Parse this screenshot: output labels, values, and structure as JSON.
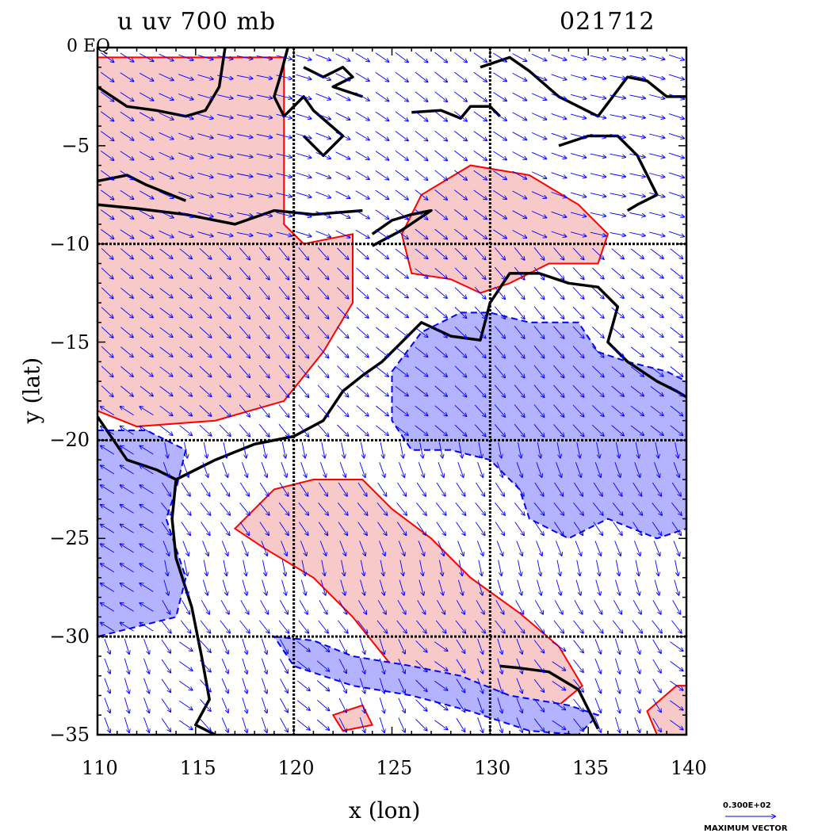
{
  "title_left": "u  uv  700  mb",
  "title_right": "021712",
  "xlabel": "x (lon)",
  "ylabel": "y (lat)",
  "x_ticks": [
    "110",
    "115",
    "120",
    "125",
    "130",
    "135",
    "140"
  ],
  "y_ticks": [
    "0 EQ",
    "−5",
    "−10",
    "−15",
    "−20",
    "−25",
    "−30",
    "−35"
  ],
  "legend": {
    "value": "0.300E+02",
    "label": "MAXIMUM VECTOR"
  },
  "colors": {
    "positive_fill": "#f7c9c9",
    "positive_line": "#ff0000",
    "negative_fill": "#b3b3ff",
    "negative_line": "#0000ff",
    "coast": "#000000",
    "vector": "#0000ff"
  },
  "chart_data": {
    "type": "map",
    "xlim": [
      110,
      140
    ],
    "ylim": [
      -35,
      0
    ],
    "grid_lon": [
      120,
      130
    ],
    "grid_lat": [
      -10,
      -20,
      -30
    ],
    "positive_regions": [
      [
        [
          110,
          -0.5
        ],
        [
          119.5,
          -0.5
        ],
        [
          119.5,
          -9
        ],
        [
          120.5,
          -10
        ],
        [
          123,
          -9.5
        ],
        [
          123,
          -13
        ],
        [
          121.5,
          -15.5
        ],
        [
          119.5,
          -18
        ],
        [
          116,
          -19
        ],
        [
          112,
          -19.3
        ],
        [
          110,
          -18.5
        ]
      ],
      [
        [
          126.5,
          -7.5
        ],
        [
          129,
          -6
        ],
        [
          132,
          -6.5
        ],
        [
          134.5,
          -8
        ],
        [
          136,
          -9.5
        ],
        [
          135.5,
          -11
        ],
        [
          133,
          -11
        ],
        [
          131,
          -12
        ],
        [
          129.5,
          -12.5
        ],
        [
          128,
          -11.8
        ],
        [
          126,
          -11.5
        ],
        [
          125.5,
          -9.5
        ]
      ],
      [
        [
          117,
          -24.5
        ],
        [
          119,
          -22.5
        ],
        [
          121,
          -22
        ],
        [
          123.5,
          -22
        ],
        [
          125,
          -23.5
        ],
        [
          127,
          -25
        ],
        [
          129,
          -27
        ],
        [
          131.5,
          -28.8
        ],
        [
          133.5,
          -30.5
        ],
        [
          134.7,
          -32.5
        ],
        [
          133.5,
          -33.5
        ],
        [
          131,
          -34
        ],
        [
          128,
          -33
        ],
        [
          125,
          -31.5
        ],
        [
          123,
          -29
        ],
        [
          121,
          -27
        ],
        [
          118.5,
          -25.5
        ]
      ],
      [
        [
          122,
          -34
        ],
        [
          123.5,
          -33.5
        ],
        [
          124,
          -34.5
        ],
        [
          122.5,
          -34.8
        ]
      ],
      [
        [
          138,
          -33.8
        ],
        [
          139.5,
          -32.5
        ],
        [
          140,
          -32.5
        ],
        [
          140,
          -35
        ],
        [
          138.5,
          -35
        ]
      ]
    ],
    "negative_regions": [
      [
        [
          125,
          -16.5
        ],
        [
          126.5,
          -14.5
        ],
        [
          128.5,
          -13.5
        ],
        [
          130,
          -13.5
        ],
        [
          132,
          -14
        ],
        [
          134.5,
          -14
        ],
        [
          135.5,
          -15.5
        ],
        [
          137,
          -16
        ],
        [
          139,
          -16.5
        ],
        [
          140,
          -17
        ],
        [
          140,
          -24.5
        ],
        [
          138.5,
          -25
        ],
        [
          136,
          -24
        ],
        [
          134,
          -25
        ],
        [
          132,
          -24
        ],
        [
          131.5,
          -22.5
        ],
        [
          130,
          -21
        ],
        [
          128,
          -20.5
        ],
        [
          126,
          -20.5
        ],
        [
          125,
          -19
        ]
      ],
      [
        [
          110,
          -19.5
        ],
        [
          112.5,
          -19.5
        ],
        [
          114.5,
          -20.5
        ],
        [
          114,
          -22.5
        ],
        [
          113.5,
          -24
        ],
        [
          114.5,
          -27
        ],
        [
          114,
          -29
        ],
        [
          110,
          -30
        ]
      ],
      [
        [
          119,
          -30
        ],
        [
          121,
          -30.2
        ],
        [
          123,
          -31
        ],
        [
          126,
          -31.5
        ],
        [
          128.5,
          -32
        ],
        [
          131,
          -33
        ],
        [
          134,
          -33.5
        ],
        [
          135.5,
          -34
        ],
        [
          134.5,
          -35
        ],
        [
          132,
          -34.8
        ],
        [
          129,
          -33.8
        ],
        [
          126,
          -33
        ],
        [
          123,
          -32.5
        ],
        [
          120,
          -31.5
        ]
      ]
    ],
    "coastlines": [
      [
        [
          110,
          -18.8
        ],
        [
          111.5,
          -21
        ],
        [
          113,
          -21.5
        ],
        [
          114,
          -22
        ],
        [
          113.8,
          -24
        ],
        [
          114,
          -26
        ],
        [
          114.8,
          -28.5
        ],
        [
          115.3,
          -31
        ],
        [
          115.7,
          -33.2
        ],
        [
          115,
          -34.5
        ],
        [
          116,
          -35
        ]
      ],
      [
        [
          114,
          -22
        ],
        [
          116,
          -21
        ],
        [
          118,
          -20.2
        ],
        [
          120,
          -19.8
        ],
        [
          121.5,
          -19
        ],
        [
          122.5,
          -17.5
        ],
        [
          123.5,
          -16.7
        ],
        [
          124.5,
          -16
        ],
        [
          125.5,
          -15
        ],
        [
          126.5,
          -14
        ],
        [
          128,
          -14.7
        ],
        [
          129.5,
          -14.9
        ],
        [
          130,
          -13
        ],
        [
          131,
          -11.5
        ],
        [
          132.5,
          -11.5
        ],
        [
          134,
          -12
        ],
        [
          135.5,
          -12.2
        ],
        [
          136.5,
          -13.2
        ],
        [
          136,
          -15
        ],
        [
          137,
          -16
        ],
        [
          138.5,
          -17
        ],
        [
          139.5,
          -17.5
        ],
        [
          140,
          -17.8
        ]
      ],
      [
        [
          130.5,
          -31.5
        ],
        [
          131.5,
          -31.6
        ],
        [
          133,
          -31.8
        ],
        [
          134.5,
          -32.7
        ],
        [
          135.5,
          -34.7
        ]
      ],
      [
        [
          129.5,
          -1
        ],
        [
          131,
          -0.5
        ],
        [
          132,
          -1.2
        ],
        [
          133.5,
          -2.5
        ],
        [
          134.5,
          -3
        ],
        [
          135.5,
          -3.5
        ],
        [
          137,
          -1.5
        ],
        [
          138,
          -1.7
        ],
        [
          139,
          -2.5
        ],
        [
          140,
          -2.5
        ]
      ],
      [
        [
          133.5,
          -5
        ],
        [
          135,
          -4.5
        ],
        [
          136.5,
          -4.5
        ],
        [
          137.5,
          -5.5
        ],
        [
          138.5,
          -7.5
        ],
        [
          137.5,
          -8
        ],
        [
          137,
          -8.3
        ]
      ],
      [
        [
          110,
          -8
        ],
        [
          112,
          -8.2
        ],
        [
          114.5,
          -8.5
        ],
        [
          116,
          -8.8
        ],
        [
          117,
          -9
        ],
        [
          119,
          -8.3
        ],
        [
          121,
          -8.5
        ],
        [
          123.5,
          -8.3
        ]
      ],
      [
        [
          110,
          -6.8
        ],
        [
          111.5,
          -6.5
        ],
        [
          112.5,
          -7
        ],
        [
          114.5,
          -7.8
        ]
      ],
      [
        [
          119.7,
          0
        ],
        [
          119.3,
          -1.5
        ],
        [
          119,
          -2.5
        ],
        [
          119.5,
          -3.5
        ],
        [
          120.5,
          -2.5
        ],
        [
          121,
          -3.2
        ],
        [
          122.5,
          -4.5
        ],
        [
          121.5,
          -5.5
        ],
        [
          120.5,
          -4.5
        ]
      ],
      [
        [
          120.5,
          -1
        ],
        [
          121.5,
          -1.5
        ],
        [
          122.5,
          -1
        ],
        [
          123,
          -1.5
        ],
        [
          122,
          -2
        ],
        [
          123.5,
          -2.5
        ]
      ],
      [
        [
          124,
          -9.5
        ],
        [
          125,
          -8.8
        ],
        [
          126,
          -8.5
        ],
        [
          127,
          -8.3
        ],
        [
          125.5,
          -9.3
        ],
        [
          124,
          -10.1
        ]
      ],
      [
        [
          110,
          -2
        ],
        [
          111.5,
          -3
        ],
        [
          113,
          -3.2
        ],
        [
          114.5,
          -3.5
        ],
        [
          115.5,
          -3.2
        ],
        [
          116.2,
          -2
        ],
        [
          116.5,
          0
        ]
      ],
      [
        [
          126,
          -3.3
        ],
        [
          127.5,
          -3.2
        ],
        [
          128.5,
          -3.6
        ],
        [
          129,
          -3
        ],
        [
          130,
          -3
        ],
        [
          130.5,
          -3.5
        ]
      ]
    ],
    "vector_grid": {
      "dlon": 1,
      "dlat": 1
    },
    "vectors_summary": "spatial flow field; direction varies smoothly, mostly south-eastward over Indonesia and Australia"
  }
}
